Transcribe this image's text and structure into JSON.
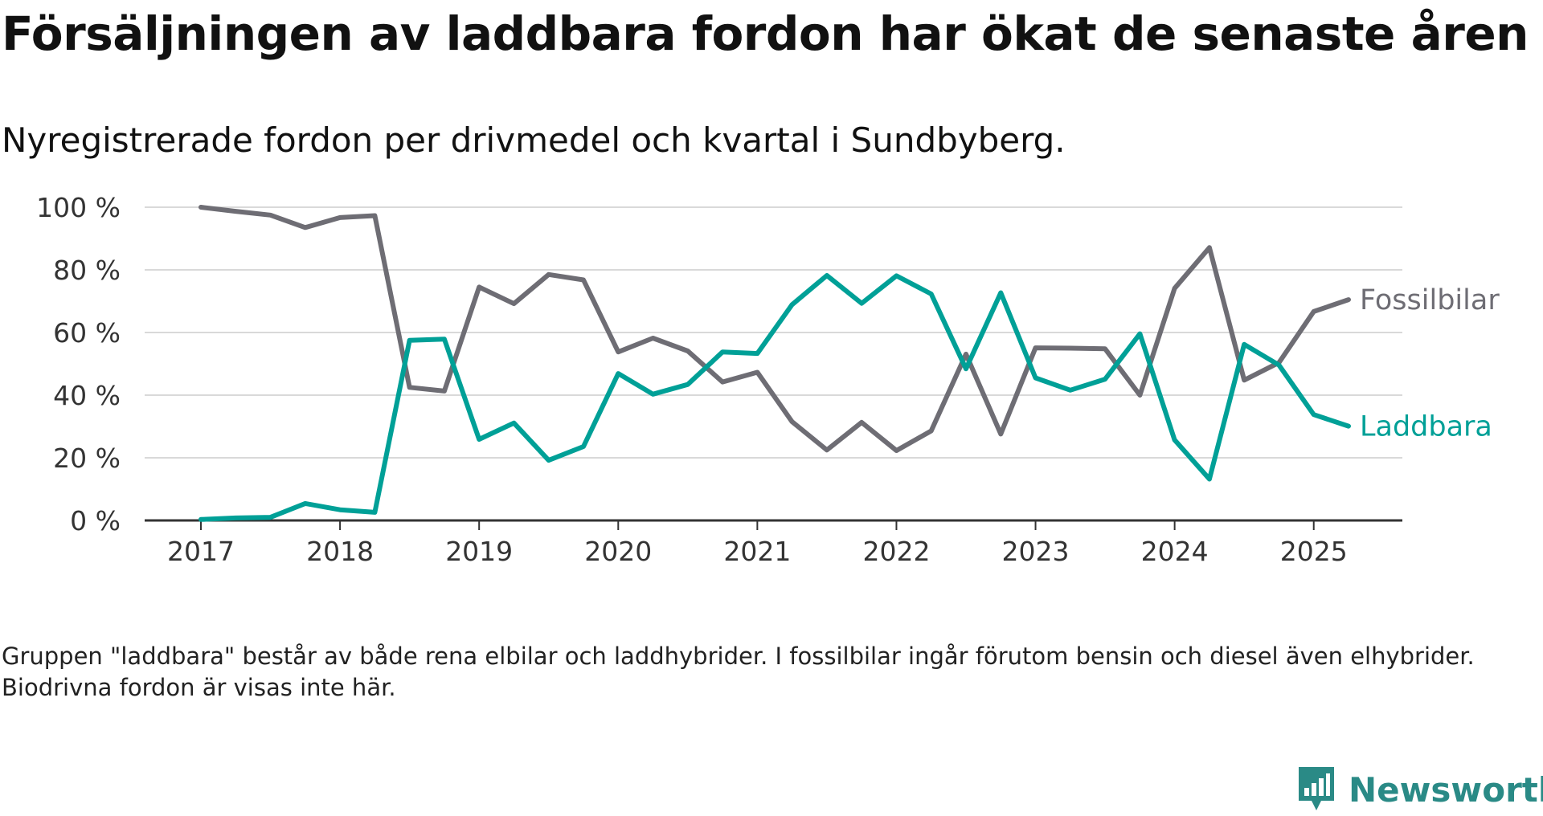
{
  "title": "Försäljningen av laddbara fordon har ökat de senaste åren",
  "subtitle": "Nyregistrerade fordon per drivmedel och kvartal i Sundbyberg.",
  "footnote": "Gruppen \"laddbara\" består av både rena elbilar och laddhybrider. I fossilbilar ingår förutom bensin och diesel även elhybrider. Biodrivna fordon är visas inte här.",
  "brand": {
    "name": "Newsworthy",
    "icon": "bar-chart-icon",
    "color": "#2a8a86"
  },
  "chart_data": {
    "type": "line",
    "x": [
      2017.0,
      2017.25,
      2017.5,
      2017.75,
      2018.0,
      2018.25,
      2018.5,
      2018.75,
      2019.0,
      2019.25,
      2019.5,
      2019.75,
      2020.0,
      2020.25,
      2020.5,
      2020.75,
      2021.0,
      2021.25,
      2021.5,
      2021.75,
      2022.0,
      2022.25,
      2022.5,
      2022.75,
      2023.0,
      2023.25,
      2023.5,
      2023.75,
      2024.0,
      2024.25,
      2024.5,
      2024.75,
      2025.0,
      2025.25
    ],
    "series": [
      {
        "name": "Fossilbilar",
        "color": "#6e6d74",
        "values": [
          100,
          98.7,
          97.5,
          93.5,
          96.7,
          97.3,
          42.5,
          41.3,
          74.5,
          69.2,
          78.5,
          76.8,
          53.8,
          58.2,
          54.1,
          44.2,
          47.3,
          31.5,
          22.5,
          31.3,
          22.3,
          28.6,
          53.1,
          27.6,
          55.1,
          55.0,
          54.8,
          40.0,
          74.1,
          87.1,
          44.8,
          50.4,
          66.7,
          70.5
        ]
      },
      {
        "name": "Laddbara",
        "color": "#00a097",
        "values": [
          0.3,
          0.8,
          1.0,
          5.4,
          3.4,
          2.6,
          57.5,
          57.9,
          25.9,
          31.1,
          19.2,
          23.6,
          46.9,
          40.3,
          43.4,
          53.8,
          53.3,
          68.9,
          78.2,
          69.3,
          78.1,
          72.3,
          48.4,
          72.7,
          45.5,
          41.6,
          45.1,
          59.6,
          25.7,
          13.2,
          56.2,
          49.6,
          33.8,
          30.1
        ]
      }
    ],
    "xticks": [
      2017,
      2018,
      2019,
      2020,
      2021,
      2022,
      2023,
      2024,
      2025
    ],
    "xtick_labels": [
      "2017",
      "2018",
      "2019",
      "2020",
      "2021",
      "2022",
      "2023",
      "2024",
      "2025"
    ],
    "yticks": [
      0,
      20,
      40,
      60,
      80,
      100
    ],
    "ytick_labels": [
      "0 %",
      "20 %",
      "40 %",
      "60 %",
      "80 %",
      "100 %"
    ],
    "ylim": [
      0,
      100
    ],
    "xlim": [
      2017,
      2025.25
    ],
    "xlabel": "",
    "ylabel": "",
    "grid": true,
    "legend": "direct labels at line ends"
  }
}
